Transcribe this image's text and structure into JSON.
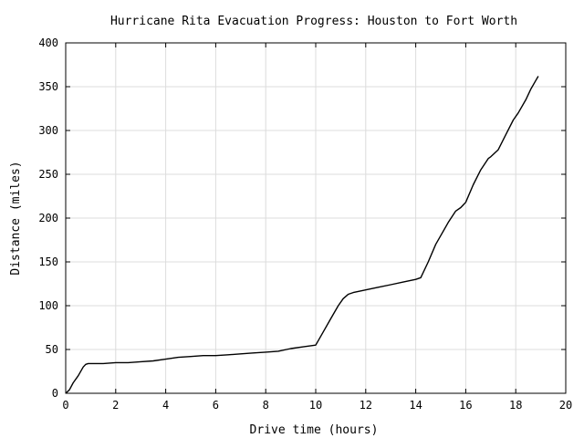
{
  "chart_data": {
    "type": "line",
    "title": "Hurricane Rita Evacuation Progress: Houston to Fort Worth",
    "xlabel": "Drive time (hours)",
    "ylabel": "Distance (miles)",
    "xlim": [
      0,
      20
    ],
    "ylim": [
      0,
      400
    ],
    "xticks": [
      0,
      2,
      4,
      6,
      8,
      10,
      12,
      14,
      16,
      18,
      20
    ],
    "yticks": [
      0,
      50,
      100,
      150,
      200,
      250,
      300,
      350,
      400
    ],
    "grid": true,
    "colors": {
      "line": "#000000",
      "grid": "#dcdcdc",
      "background": "#ffffff"
    },
    "series": [
      {
        "x": [
          0,
          0.15,
          0.3,
          0.5,
          0.7,
          0.8,
          0.9,
          1.0,
          1.5,
          2.0,
          2.5,
          3.0,
          3.5,
          4.0,
          4.5,
          5.0,
          5.5,
          6.0,
          6.5,
          7.0,
          7.5,
          8.0,
          8.5,
          9.0,
          9.5,
          10.0,
          10.3,
          10.6,
          10.9,
          11.1,
          11.3,
          11.5,
          12.0,
          12.5,
          13.0,
          13.5,
          14.0,
          14.2,
          14.5,
          14.8,
          15.0,
          15.3,
          15.6,
          15.8,
          16.0,
          16.3,
          16.6,
          16.9,
          17.0,
          17.3,
          17.6,
          17.9,
          18.1,
          18.4,
          18.6,
          18.8,
          18.9
        ],
        "y": [
          0,
          4,
          12,
          20,
          30,
          33,
          34,
          34,
          34,
          35,
          35,
          36,
          37,
          39,
          41,
          42,
          43,
          43,
          44,
          45,
          46,
          47,
          48,
          51,
          53,
          55,
          70,
          85,
          100,
          108,
          113,
          115,
          118,
          121,
          124,
          127,
          130,
          132,
          150,
          170,
          180,
          195,
          208,
          212,
          218,
          238,
          255,
          268,
          270,
          278,
          295,
          312,
          320,
          335,
          347,
          357,
          362
        ]
      }
    ]
  }
}
